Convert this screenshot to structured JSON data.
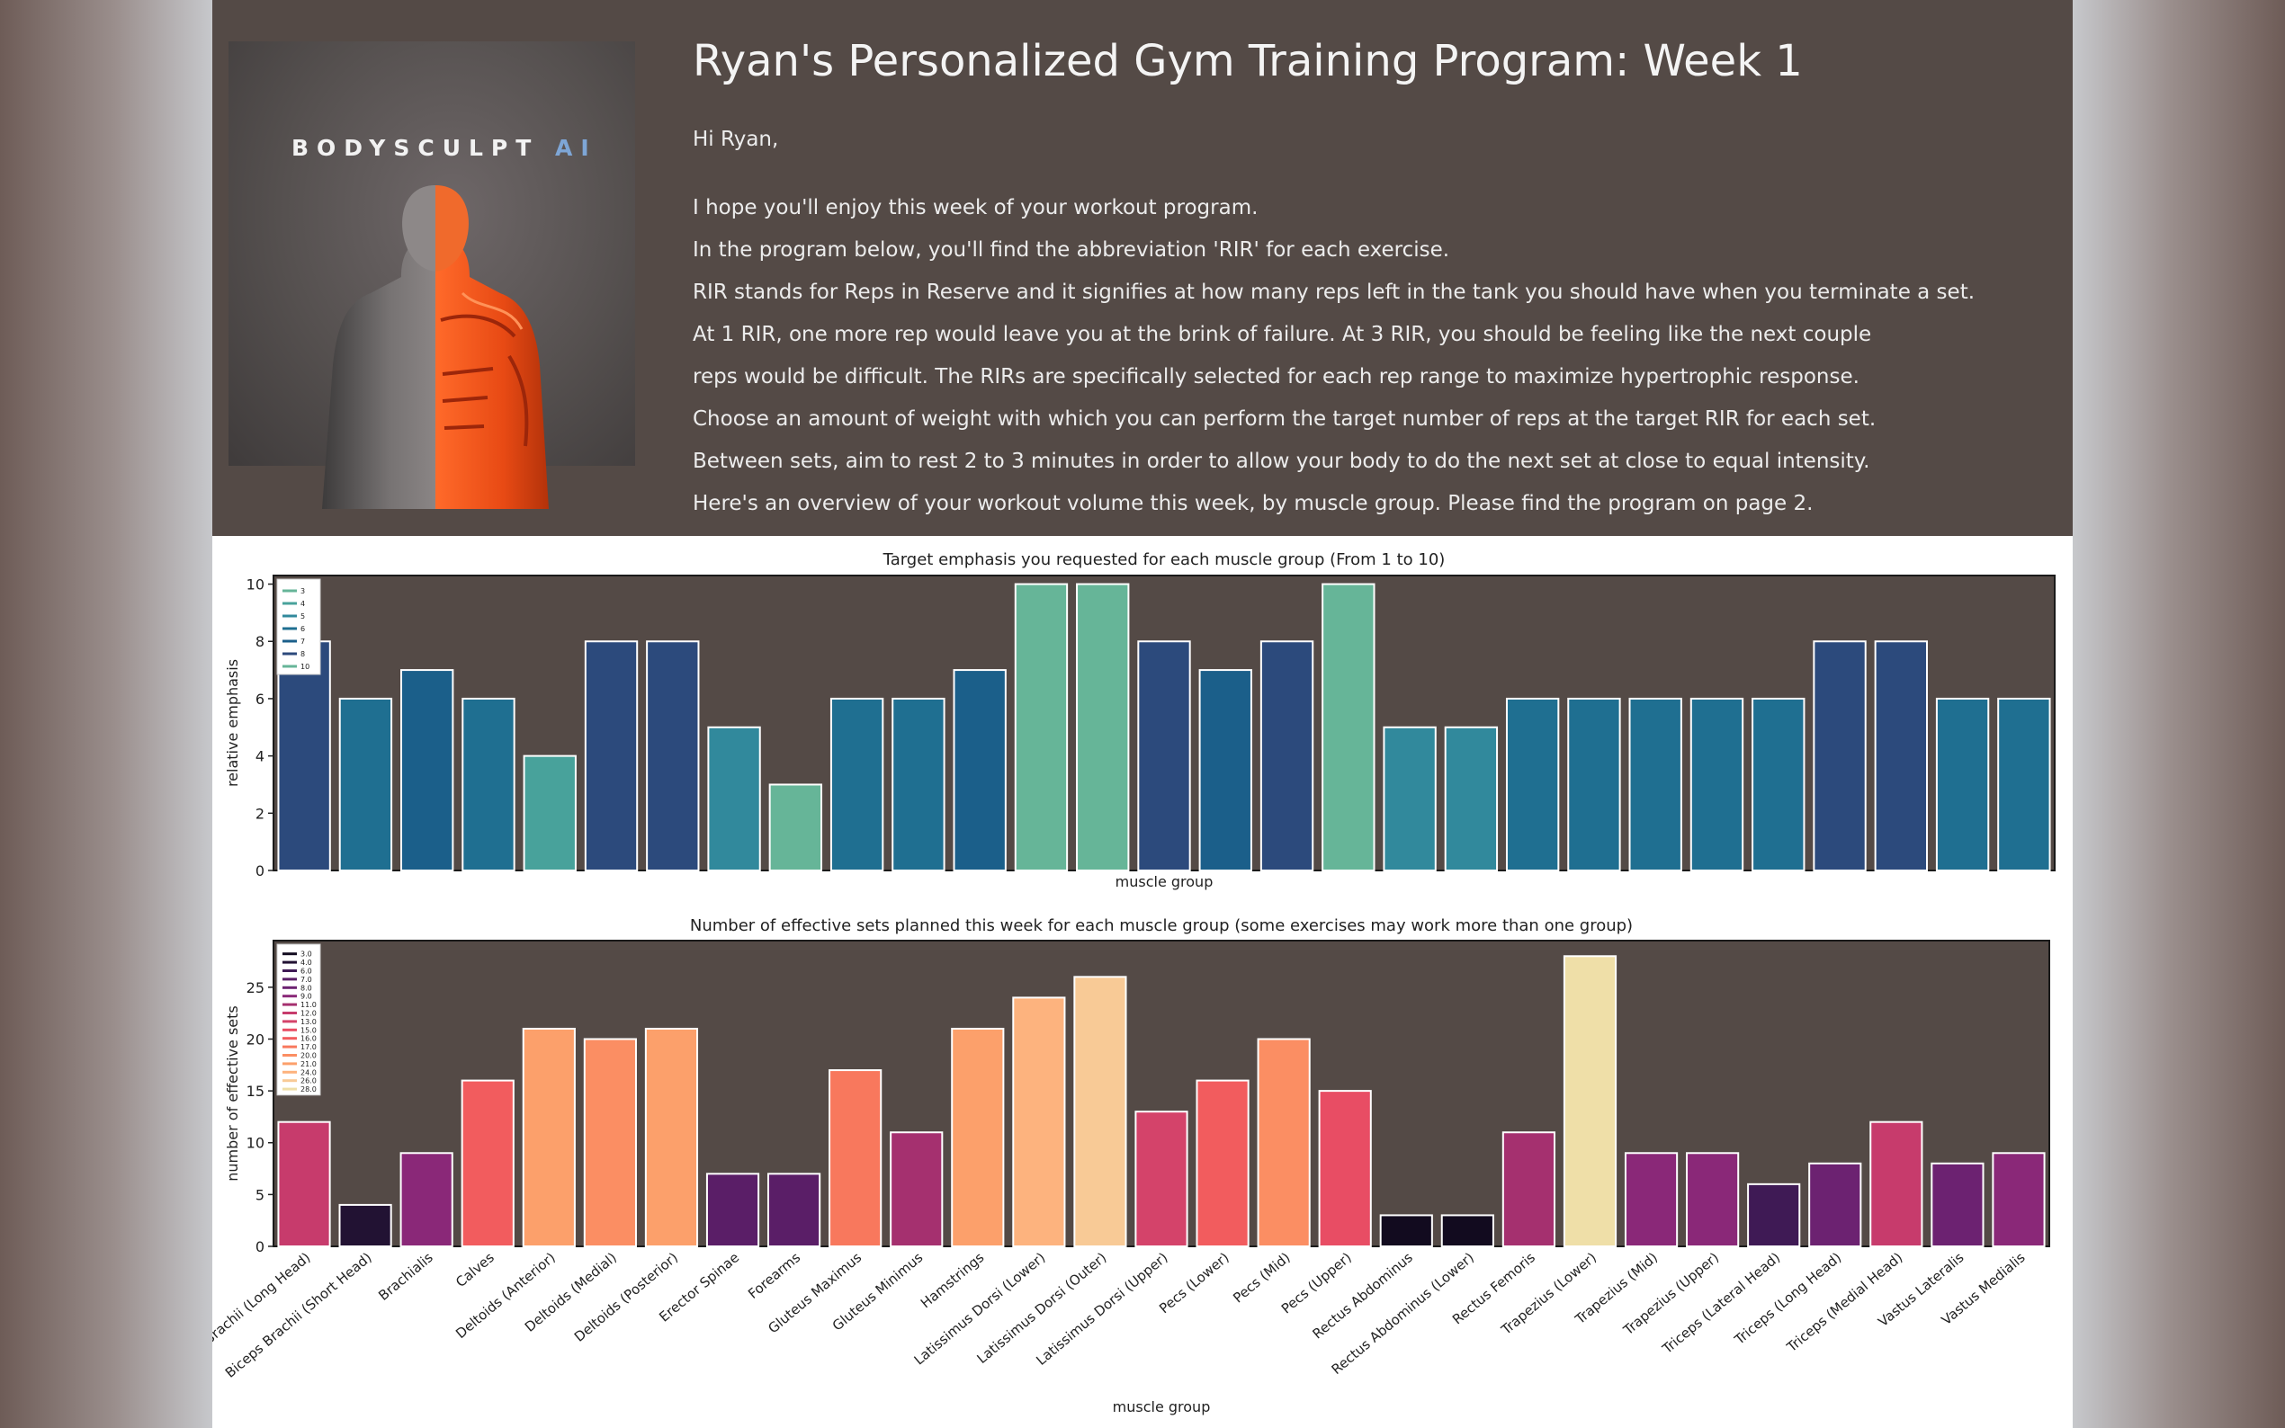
{
  "header": {
    "brand_main": "BODYSCULPT",
    "brand_suffix": "AI",
    "title": "Ryan's Personalized Gym Training Program: Week 1",
    "greeting": "Hi Ryan,",
    "paragraphs": [
      "I hope you'll enjoy this week of your workout program.",
      "In the program below, you'll find the abbreviation 'RIR' for each exercise.",
      "RIR stands for Reps in Reserve and it signifies at how many reps left in the tank you should have when you terminate a set.",
      "At 1 RIR, one more rep would leave you at the brink of failure. At 3 RIR, you should be feeling like the next couple",
      "reps would be difficult. The RIRs are specifically selected for each rep range to maximize hypertrophic response.",
      "Choose an amount of weight with which you can perform the target number of reps at the target RIR for each set.",
      "Between sets, aim to rest 2 to 3 minutes in order to allow your body to do the next set at close to equal intensity.",
      "Here's an overview of your workout volume this week, by muscle group. Please find the program on page 2."
    ]
  },
  "chart_data": [
    {
      "type": "bar",
      "title": "Target emphasis you requested for each muscle group (From 1 to 10)",
      "xlabel": "muscle group",
      "ylabel": "relative emphasis",
      "ylim": [
        0,
        10.3
      ],
      "yticks": [
        "0",
        "2",
        "4",
        "6",
        "8",
        "10"
      ],
      "legend_position": "top-left",
      "legend": [
        "3",
        "4",
        "5",
        "6",
        "7",
        "8",
        "10"
      ],
      "categories": [
        "Biceps Brachii (Long Head)",
        "Biceps Brachii (Short Head)",
        "Brachialis",
        "Calves",
        "Deltoids (Anterior)",
        "Deltoids (Medial)",
        "Deltoids (Posterior)",
        "Erector Spinae",
        "Forearms",
        "Gluteus Maximus",
        "Gluteus Minimus",
        "Hamstrings",
        "Latissimus Dorsi (Lower)",
        "Latissimus Dorsi (Outer)",
        "Latissimus Dorsi (Upper)",
        "Pecs (Lower)",
        "Pecs (Mid)",
        "Pecs (Upper)",
        "Rectus Abdominus",
        "Rectus Abdominus (Lower)",
        "Rectus Femoris",
        "Trapezius (Lower)",
        "Trapezius (Mid)",
        "Trapezius (Upper)",
        "Triceps (Lateral Head)",
        "Triceps (Long Head)",
        "Triceps (Medial Head)",
        "Vastus Lateralis",
        "Vastus Medialis"
      ],
      "values": [
        8,
        6,
        7,
        6,
        4,
        8,
        8,
        5,
        3,
        6,
        6,
        7,
        10,
        10,
        8,
        7,
        8,
        10,
        5,
        5,
        6,
        6,
        6,
        6,
        6,
        8,
        8,
        6,
        6
      ],
      "palette": {
        "3": "#66b598",
        "4": "#48a29b",
        "5": "#31899c",
        "6": "#1f6f91",
        "7": "#1b5f8a",
        "8": "#2c4a7c",
        "10": "#66b598"
      }
    },
    {
      "type": "bar",
      "title": "Number of effective sets planned this week for each muscle group (some exercises may work more than one group)",
      "xlabel": "muscle group",
      "ylabel": "number of effective sets",
      "ylim": [
        0,
        29.5
      ],
      "yticks": [
        "0",
        "5",
        "10",
        "15",
        "20",
        "25"
      ],
      "legend_position": "top-left",
      "legend": [
        "3.0",
        "4.0",
        "6.0",
        "7.0",
        "8.0",
        "9.0",
        "11.0",
        "12.0",
        "13.0",
        "15.0",
        "16.0",
        "17.0",
        "20.0",
        "21.0",
        "24.0",
        "26.0",
        "28.0"
      ],
      "categories": [
        "Biceps Brachii (Long Head)",
        "Biceps Brachii (Short Head)",
        "Brachialis",
        "Calves",
        "Deltoids (Anterior)",
        "Deltoids (Medial)",
        "Deltoids (Posterior)",
        "Erector Spinae",
        "Forearms",
        "Gluteus Maximus",
        "Gluteus Minimus",
        "Hamstrings",
        "Latissimus Dorsi (Lower)",
        "Latissimus Dorsi (Outer)",
        "Latissimus Dorsi (Upper)",
        "Pecs (Lower)",
        "Pecs (Mid)",
        "Pecs (Upper)",
        "Rectus Abdominus",
        "Rectus Abdominus (Lower)",
        "Rectus Femoris",
        "Trapezius (Lower)",
        "Trapezius (Mid)",
        "Trapezius (Upper)",
        "Triceps (Lateral Head)",
        "Triceps (Long Head)",
        "Triceps (Medial Head)",
        "Vastus Lateralis",
        "Vastus Medialis"
      ],
      "values": [
        12,
        4,
        9,
        16,
        21,
        20,
        21,
        7,
        7,
        17,
        11,
        21,
        24,
        26,
        13,
        16,
        20,
        15,
        3,
        3,
        11,
        28,
        9,
        9,
        6,
        8,
        12,
        8,
        9
      ],
      "palette": {
        "3.0": "#120b1f",
        "4.0": "#221233",
        "6.0": "#3f1a55",
        "7.0": "#5a1e67",
        "8.0": "#6c2271",
        "9.0": "#8a2878",
        "11.0": "#a5306f",
        "12.0": "#c73b6c",
        "13.0": "#d4436a",
        "15.0": "#e84d64",
        "16.0": "#f25c5e",
        "17.0": "#f8785d",
        "20.0": "#fb8e63",
        "21.0": "#fca06b",
        "24.0": "#fdb37e",
        "26.0": "#f8ca96",
        "28.0": "#efdfa8"
      }
    }
  ]
}
